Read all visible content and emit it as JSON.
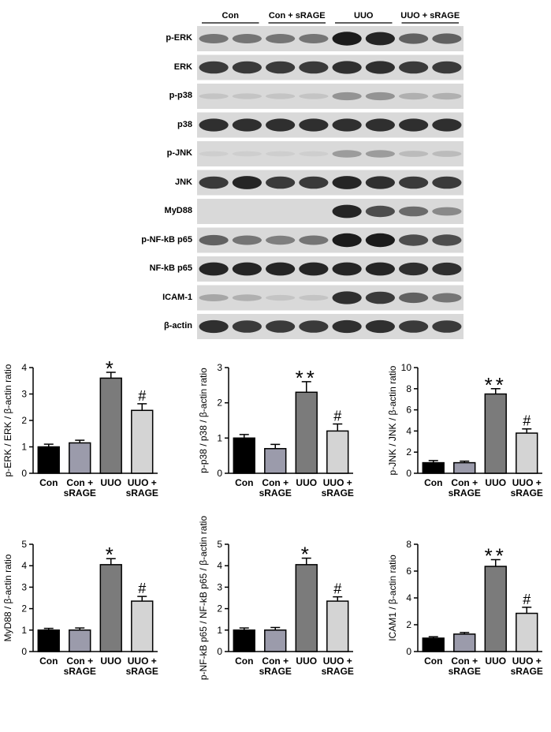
{
  "blot": {
    "groups": [
      "Con",
      "Con + sRAGE",
      "UUO",
      "UUO + sRAGE"
    ],
    "rows": [
      "p-ERK",
      "ERK",
      "p-p38",
      "p38",
      "p-JNK",
      "JNK",
      "MyD88",
      "p-NF-kB p65",
      "NF-kB p65",
      "ICAM-1",
      "β-actin"
    ]
  },
  "chart_data": [
    {
      "type": "bar",
      "ylabel": "p-ERK / ERK / β-actin ratio",
      "categories": [
        "Con",
        "Con + sRAGE",
        "UUO",
        "UUO + sRAGE"
      ],
      "values": [
        1.0,
        1.15,
        3.6,
        2.38
      ],
      "errors": [
        0.1,
        0.1,
        0.22,
        0.25
      ],
      "colors": [
        "#000000",
        "#9b9bab",
        "#7b7b7b",
        "#d4d4d4"
      ],
      "ylim": [
        0,
        4
      ],
      "yticks": [
        0,
        1,
        2,
        3,
        4
      ],
      "markers": [
        {
          "index": 2,
          "text": "*"
        },
        {
          "index": 3,
          "text": "#"
        }
      ]
    },
    {
      "type": "bar",
      "ylabel": "p-p38 / p38 / β-actin ratio",
      "categories": [
        "Con",
        "Con + sRAGE",
        "UUO",
        "UUO + sRAGE"
      ],
      "values": [
        1.0,
        0.7,
        2.3,
        1.2
      ],
      "errors": [
        0.1,
        0.12,
        0.3,
        0.2
      ],
      "colors": [
        "#000000",
        "#9b9bab",
        "#7b7b7b",
        "#d4d4d4"
      ],
      "ylim": [
        0,
        3
      ],
      "yticks": [
        0,
        1,
        2,
        3
      ],
      "markers": [
        {
          "index": 2,
          "text": "**"
        },
        {
          "index": 3,
          "text": "#"
        }
      ]
    },
    {
      "type": "bar",
      "ylabel": "p-JNK / JNK / β-actin ratio",
      "categories": [
        "Con",
        "Con + sRAGE",
        "UUO",
        "UUO + sRAGE"
      ],
      "values": [
        1.0,
        1.0,
        7.5,
        3.8
      ],
      "errors": [
        0.2,
        0.15,
        0.5,
        0.4
      ],
      "colors": [
        "#000000",
        "#9b9bab",
        "#7b7b7b",
        "#d4d4d4"
      ],
      "ylim": [
        0,
        10
      ],
      "yticks": [
        0,
        2,
        4,
        6,
        8,
        10
      ],
      "markers": [
        {
          "index": 2,
          "text": "**"
        },
        {
          "index": 3,
          "text": "#"
        }
      ]
    },
    {
      "type": "bar",
      "ylabel": "MyD88 / β-actin ratio",
      "categories": [
        "Con",
        "Con + sRAGE",
        "UUO",
        "UUO + sRAGE"
      ],
      "values": [
        1.0,
        1.0,
        4.05,
        2.35
      ],
      "errors": [
        0.08,
        0.1,
        0.28,
        0.22
      ],
      "colors": [
        "#000000",
        "#9b9bab",
        "#7b7b7b",
        "#d4d4d4"
      ],
      "ylim": [
        0,
        5
      ],
      "yticks": [
        0,
        1,
        2,
        3,
        4,
        5
      ],
      "markers": [
        {
          "index": 2,
          "text": "*"
        },
        {
          "index": 3,
          "text": "#"
        }
      ]
    },
    {
      "type": "bar",
      "ylabel": "p-NF-kB p65 / NF-kB p65 / β-actin ratio",
      "categories": [
        "Con",
        "Con + sRAGE",
        "UUO",
        "UUO + sRAGE"
      ],
      "values": [
        1.0,
        1.0,
        4.05,
        2.35
      ],
      "errors": [
        0.1,
        0.12,
        0.3,
        0.2
      ],
      "colors": [
        "#000000",
        "#9b9bab",
        "#7b7b7b",
        "#d4d4d4"
      ],
      "ylim": [
        0,
        5
      ],
      "yticks": [
        0,
        1,
        2,
        3,
        4,
        5
      ],
      "markers": [
        {
          "index": 2,
          "text": "*"
        },
        {
          "index": 3,
          "text": "#"
        }
      ]
    },
    {
      "type": "bar",
      "ylabel": "ICAM1 / β-actin ratio",
      "categories": [
        "Con",
        "Con + sRAGE",
        "UUO",
        "UUO + sRAGE"
      ],
      "values": [
        1.0,
        1.3,
        6.35,
        2.85
      ],
      "errors": [
        0.1,
        0.12,
        0.5,
        0.45
      ],
      "colors": [
        "#000000",
        "#9b9bab",
        "#7b7b7b",
        "#d4d4d4"
      ],
      "ylim": [
        0,
        8
      ],
      "yticks": [
        0,
        2,
        4,
        6,
        8
      ],
      "markers": [
        {
          "index": 2,
          "text": "**"
        },
        {
          "index": 3,
          "text": "#"
        }
      ]
    }
  ]
}
